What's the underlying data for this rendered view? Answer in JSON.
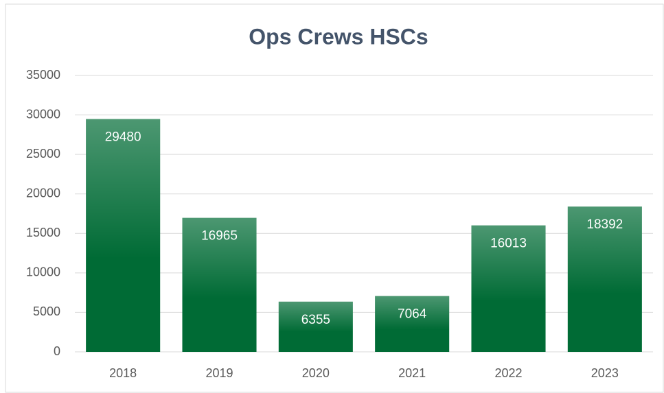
{
  "chart_data": {
    "type": "bar",
    "title": "Ops Crews HSCs",
    "categories": [
      "2018",
      "2019",
      "2020",
      "2021",
      "2022",
      "2023"
    ],
    "values": [
      29480,
      16965,
      6355,
      7064,
      16013,
      18392
    ],
    "color": "#006b35",
    "ylim": [
      0,
      35000
    ],
    "yticks": [
      0,
      5000,
      10000,
      15000,
      20000,
      25000,
      30000,
      35000
    ],
    "grid": true
  }
}
